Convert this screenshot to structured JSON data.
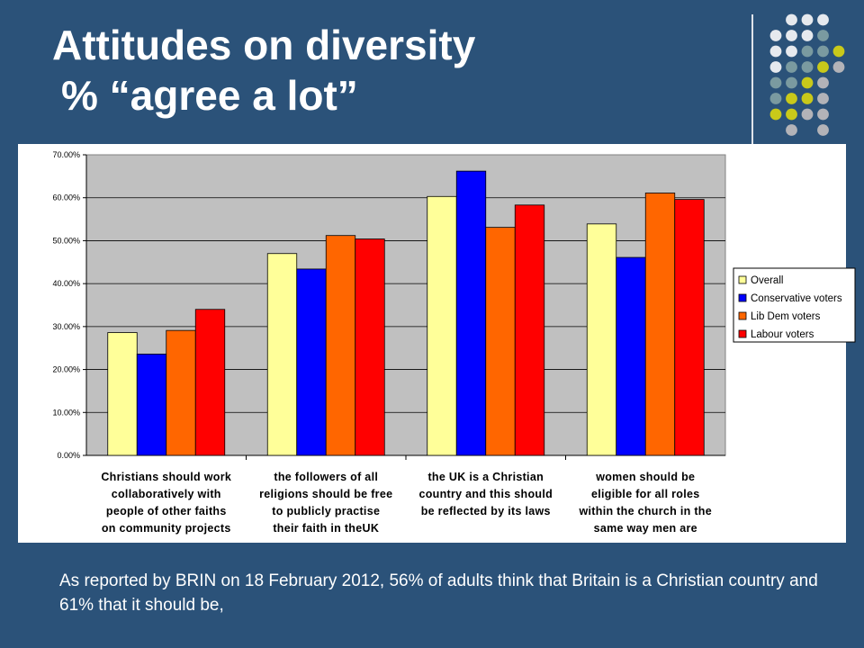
{
  "slide": {
    "title_line1": "Attitudes on diversity",
    "title_line2": "% “agree a lot”",
    "caption": "As reported by BRIN on 18 February 2012, 56% of adults think that Britain is a Christian country and 61% that it should be,"
  },
  "decoration": {
    "dot_colors": {
      "white": "#e6e9ee",
      "teal": "#7a9aa0",
      "yellow": "#c9c91a",
      "gray": "#b3b3b8"
    }
  },
  "chart_data": {
    "type": "bar",
    "categories": [
      [
        "Christians should work",
        "collaboratively with",
        "people of other faiths",
        "on community projects"
      ],
      [
        "the followers of all",
        "religions should be free",
        "to publicly practise",
        "their faith in theUK"
      ],
      [
        "the UK is a Christian",
        "country and this should",
        "be reflected by its laws"
      ],
      [
        "women should be",
        "eligible for all roles",
        "within the church in the",
        "same way men are"
      ]
    ],
    "series": [
      {
        "name": "Overall",
        "color": "#ffff99",
        "values": [
          28.6,
          47.0,
          60.3,
          53.9
        ]
      },
      {
        "name": "Conservative voters",
        "color": "#0000ff",
        "values": [
          23.6,
          43.4,
          66.2,
          46.1
        ]
      },
      {
        "name": "Lib Dem voters",
        "color": "#ff6600",
        "values": [
          29.1,
          51.2,
          53.1,
          61.1
        ]
      },
      {
        "name": "Labour voters",
        "color": "#ff0000",
        "values": [
          34.0,
          50.4,
          58.3,
          59.6
        ]
      }
    ],
    "yticks": [
      "0.00%",
      "10.00%",
      "20.00%",
      "30.00%",
      "40.00%",
      "50.00%",
      "60.00%",
      "70.00%"
    ],
    "ylim": [
      0,
      70
    ],
    "grid": true,
    "legend_position": "right",
    "plot_background": "#c0c0c0"
  }
}
